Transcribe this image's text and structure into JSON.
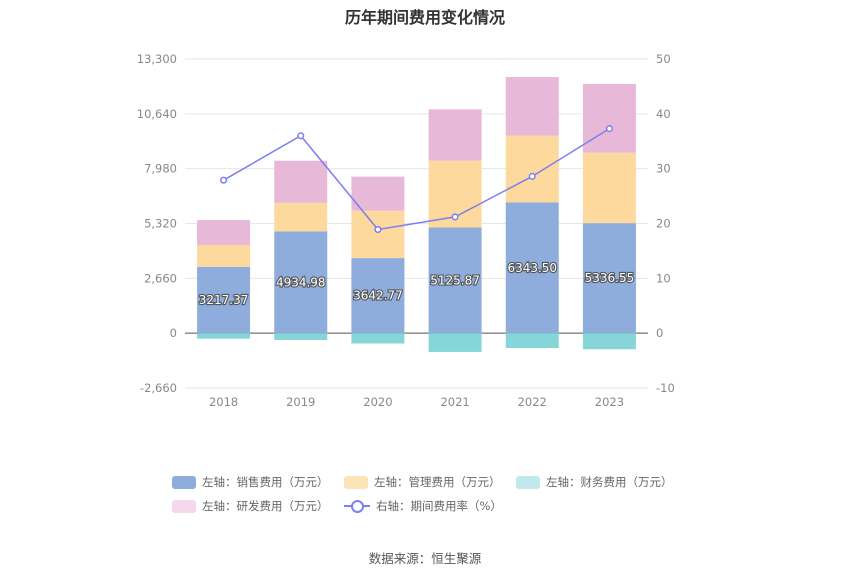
{
  "chart_data": {
    "type": "bar",
    "title": "历年期间费用变化情况",
    "categories": [
      "2018",
      "2019",
      "2020",
      "2021",
      "2022",
      "2023"
    ],
    "stacked": true,
    "left_axis": {
      "ylim": [
        -2660,
        13300
      ],
      "ticks": [
        "13,300",
        "10,640",
        "7,980",
        "5,320",
        "2,660",
        "0",
        "-2,660"
      ],
      "tick_values": [
        13300,
        10640,
        7980,
        5320,
        2660,
        0,
        -2660
      ]
    },
    "right_axis": {
      "ylim": [
        -10,
        50
      ],
      "ticks": [
        "50",
        "40",
        "30",
        "20",
        "10",
        "0",
        "-10"
      ],
      "tick_values": [
        50,
        40,
        30,
        20,
        10,
        0,
        -10
      ]
    },
    "series": [
      {
        "name": "左轴：销售费用（万元）",
        "axis": "left",
        "color": "#8eacdc",
        "values": [
          3217.37,
          4934.98,
          3642.77,
          5125.87,
          6343.5,
          5336.55
        ],
        "labels": [
          "3217.37",
          "4934.98",
          "3642.77",
          "5125.87",
          "6343.50",
          "5336.55"
        ]
      },
      {
        "name": "左轴：管理费用（万元）",
        "axis": "left",
        "color": "#fdd99e",
        "values": [
          1060,
          1390,
          2300,
          3240,
          3240,
          3420
        ]
      },
      {
        "name": "左轴：财务费用（万元）",
        "axis": "left",
        "color": "#86d5d8",
        "values": [
          -270,
          -330,
          -500,
          -910,
          -720,
          -780
        ]
      },
      {
        "name": "左轴：研发费用（万元）",
        "axis": "left",
        "color": "#e8b8d9",
        "values": [
          1210,
          2040,
          1650,
          2490,
          2840,
          3330
        ]
      },
      {
        "name": "右轴：期间费用率（%）",
        "axis": "right",
        "type": "line",
        "color": "#7b7ff0",
        "values": [
          27.9,
          36.0,
          18.9,
          21.2,
          28.6,
          37.3
        ]
      }
    ],
    "legend_position": "bottom",
    "grid": true
  },
  "source": "数据来源：恒生聚源"
}
